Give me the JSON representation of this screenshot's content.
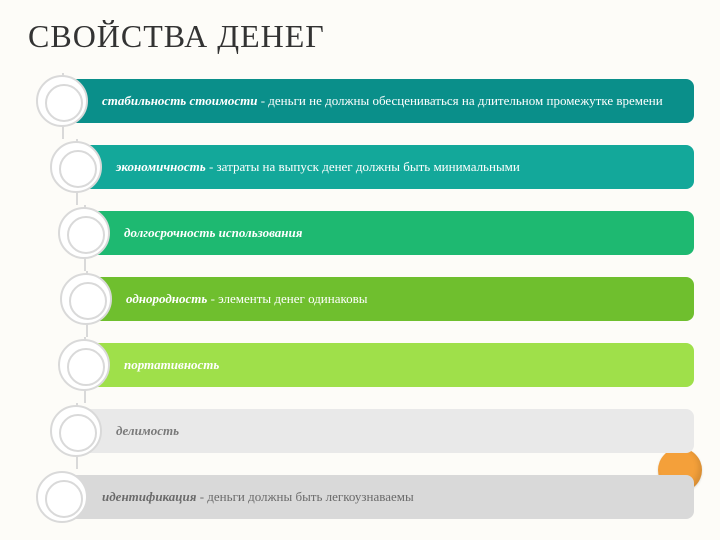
{
  "title": "СВОЙСТВА ДЕНЕГ",
  "spine_color": "#d9d9d9",
  "circle_border": "#d9d9d9",
  "corner_dot_color": "#f4a03a",
  "items": [
    {
      "bold": "стабильность стоимости",
      "text": " - деньги не должны обесцениваться на длительном промежутке времени",
      "bg": "#0a8f8a",
      "text_color": "#ffffff",
      "indent": 0,
      "two_line": true
    },
    {
      "bold": "экономичность",
      "text": " - затраты на выпуск денег должны быть минимальными",
      "bg": "#13a89a",
      "text_color": "#ffffff",
      "indent": 14,
      "two_line": false
    },
    {
      "bold": "долгосрочность использования",
      "text": "",
      "bg": "#1eb971",
      "text_color": "#ffffff",
      "indent": 22,
      "two_line": false
    },
    {
      "bold": "однородность",
      "text": " - элементы денег одинаковы",
      "bg": "#6fbf2e",
      "text_color": "#ffffff",
      "indent": 24,
      "two_line": false
    },
    {
      "bold": "портативность",
      "text": "",
      "bg": "#9fe04a",
      "text_color": "#ffffff",
      "indent": 22,
      "two_line": false
    },
    {
      "bold": "делимость",
      "text": "",
      "bg": "#e9e9e9",
      "text_color": "#7a7a7a",
      "indent": 14,
      "two_line": false
    },
    {
      "bold": "идентификация",
      "text": " - деньги должны быть легкоузнаваемы",
      "bg": "#d9d9d9",
      "text_color": "#6a6a6a",
      "indent": 0,
      "two_line": false
    }
  ]
}
